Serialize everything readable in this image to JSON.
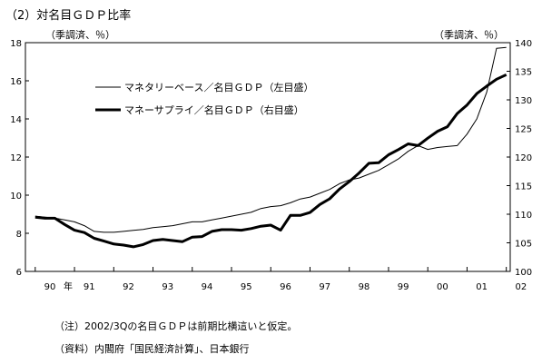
{
  "chart_data": {
    "type": "line",
    "title": "（2）対名目ＧＤＰ比率",
    "left_axis_unit": "（季調済、％）",
    "right_axis_unit": "（季調済、％）",
    "ylim_left": [
      6,
      18
    ],
    "ylim_right": [
      100,
      140
    ],
    "y_ticks_left": [
      "6",
      "8",
      "10",
      "12",
      "14",
      "16",
      "18"
    ],
    "y_ticks_right": [
      "100",
      "105",
      "110",
      "115",
      "120",
      "125",
      "130",
      "135",
      "140"
    ],
    "x_ticks": [
      "90",
      "91",
      "92",
      "93",
      "94",
      "95",
      "96",
      "97",
      "98",
      "99",
      "00",
      "01",
      "02"
    ],
    "x_year_suffix": "年",
    "xlim": [
      1989.75,
      2002.1
    ],
    "grid": false,
    "legend_placement": "top-left",
    "series": [
      {
        "name": "マネタリーベース／名目ＧＤＰ（左目盛）",
        "axis": "left",
        "style": "thin",
        "x": [
          1990.0,
          1990.25,
          1990.5,
          1990.75,
          1991.0,
          1991.25,
          1991.5,
          1991.75,
          1992.0,
          1992.25,
          1992.5,
          1992.75,
          1993.0,
          1993.25,
          1993.5,
          1993.75,
          1994.0,
          1994.25,
          1994.5,
          1994.75,
          1995.0,
          1995.25,
          1995.5,
          1995.75,
          1996.0,
          1996.25,
          1996.5,
          1996.75,
          1997.0,
          1997.25,
          1997.5,
          1997.75,
          1998.0,
          1998.25,
          1998.5,
          1998.75,
          1999.0,
          1999.25,
          1999.5,
          1999.75,
          2000.0,
          2000.25,
          2000.5,
          2000.75,
          2001.0,
          2001.25,
          2001.5,
          2001.75,
          2002.0
        ],
        "values": [
          8.9,
          8.85,
          8.8,
          8.7,
          8.6,
          8.4,
          8.1,
          8.05,
          8.05,
          8.1,
          8.15,
          8.2,
          8.3,
          8.35,
          8.4,
          8.5,
          8.6,
          8.6,
          8.7,
          8.8,
          8.9,
          9.0,
          9.1,
          9.3,
          9.4,
          9.45,
          9.6,
          9.8,
          9.9,
          10.1,
          10.3,
          10.6,
          10.8,
          10.9,
          11.1,
          11.3,
          11.6,
          11.9,
          12.3,
          12.6,
          12.4,
          12.5,
          12.55,
          12.6,
          13.2,
          14.0,
          15.4,
          17.7,
          17.75
        ]
      },
      {
        "name": "マネーサプライ／名目ＧＤＰ（右目盛）",
        "axis": "right",
        "style": "thick",
        "x": [
          1990.0,
          1990.25,
          1990.5,
          1990.75,
          1991.0,
          1991.25,
          1991.5,
          1991.75,
          1992.0,
          1992.25,
          1992.5,
          1992.75,
          1993.0,
          1993.25,
          1993.5,
          1993.75,
          1994.0,
          1994.25,
          1994.5,
          1994.75,
          1995.0,
          1995.25,
          1995.5,
          1995.75,
          1996.0,
          1996.25,
          1996.5,
          1996.75,
          1997.0,
          1997.25,
          1997.5,
          1997.75,
          1998.0,
          1998.25,
          1998.5,
          1998.75,
          1999.0,
          1999.25,
          1999.5,
          1999.75,
          2000.0,
          2000.25,
          2000.5,
          2000.75,
          2001.0,
          2001.25,
          2001.5,
          2001.75,
          2002.0
        ],
        "values": [
          109.5,
          109.3,
          109.3,
          108.2,
          107.2,
          106.8,
          105.8,
          105.3,
          104.8,
          104.6,
          104.3,
          104.7,
          105.4,
          105.6,
          105.4,
          105.2,
          106.0,
          106.1,
          107.0,
          107.3,
          107.3,
          107.2,
          107.5,
          107.9,
          108.1,
          107.2,
          109.8,
          109.8,
          110.3,
          111.7,
          112.7,
          114.4,
          115.7,
          117.2,
          118.9,
          119.0,
          120.4,
          121.3,
          122.3,
          122.0,
          123.3,
          124.5,
          125.3,
          127.6,
          129.1,
          131.1,
          132.4,
          133.6,
          134.4
        ]
      }
    ]
  },
  "footer": {
    "note": "（注）2002/3Qの名目ＧＤＰは前期比横這いと仮定。",
    "source": "（資料）内閣府「国民経済計算」、日本銀行"
  }
}
